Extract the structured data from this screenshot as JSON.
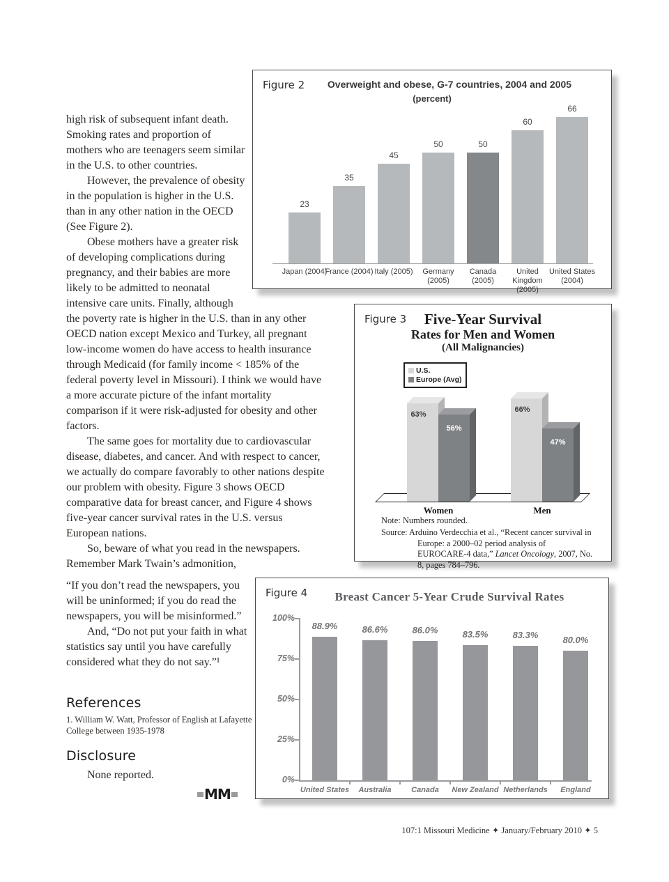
{
  "page": {
    "footer": "107:1 Missouri Medicine ✦ January/February 2010 ✦ 5"
  },
  "article": {
    "paragraphs": [
      {
        "text": "high risk of subsequent infant death. Smoking rates and proportion of mothers who are teenagers seem similar in the U.S. to other countries.",
        "indent": false
      },
      {
        "text": "However, the prevalence of obesity in the population is higher in the U.S. than in any other nation in the OECD (See Figure 2).",
        "indent": true
      },
      {
        "text": "Obese mothers have a greater risk of developing complications during pregnancy, and their babies are more likely to be admitted to neonatal intensive care units.  Finally, although",
        "indent": true
      },
      {
        "text": "the poverty rate is higher in the U.S. than in any other OECD nation except Mexico and Turkey, all pregnant low-income women do have access to health insurance through Medicaid (for family income < 185% of the federal poverty level in Missouri).  I think we would have a more accurate picture of the infant mortality comparison if it were risk-adjusted for obesity and other factors.",
        "indent": false
      },
      {
        "text": "The same goes for mortality due to cardiovascular disease, diabetes, and cancer.  And with respect to cancer, we actually do compare favorably to other nations despite our problem with obesity.  Figure 3 shows OECD comparative data for breast cancer, and Figure 4 shows five-year cancer survival rates in the U.S. versus European nations.",
        "indent": true
      },
      {
        "text": "So, beware of what you read in the newspapers. Remember Mark Twain’s admonition,",
        "indent": true
      },
      {
        "text": "“If you don’t read the newspapers, you will be uninformed; if you do read the newspapers, you will be misinformed.”",
        "indent": false
      },
      {
        "text": "And, “Do not put your faith in what statistics say until you have carefully considered what they do not say.”¹",
        "indent": true
      }
    ],
    "references": {
      "heading": "References",
      "item_1": "1. William W. Watt, Professor of English at Lafayette College between 1935-1978"
    },
    "disclosure": {
      "heading": "Disclosure",
      "text": "None reported."
    },
    "logo_text": "MM"
  },
  "chart_data": [
    {
      "figure_label": "Figure 2",
      "type": "bar",
      "title": "Overweight and obese, G-7 countries, 2004 and 2005",
      "subtitle": "(percent)",
      "categories": [
        "Japan (2004)",
        "France (2004)",
        "Italy (2005)",
        "Germany\n(2005)",
        "Canada\n(2005)",
        "United\nKingdom\n(2005)",
        "United States\n(2004)"
      ],
      "values": [
        23,
        35,
        45,
        50,
        50,
        60,
        66
      ],
      "highlight_index": 4,
      "bar_color": "#b5b9bc",
      "highlight_color": "#85888b",
      "ylim": [
        0,
        70
      ],
      "grid": false,
      "legend": "none",
      "value_labels": true
    },
    {
      "figure_label": "Figure 3",
      "type": "bar-3d-grouped",
      "title_lines": [
        "Five-Year Survival",
        "Rates for Men and Women",
        "(All Malignancies)"
      ],
      "categories": [
        "Women",
        "Men"
      ],
      "series": [
        {
          "name": "U.S.",
          "values": [
            63,
            66
          ],
          "color": "#d7d7d7"
        },
        {
          "name": "Europe (Avg)",
          "values": [
            56,
            47
          ],
          "color": "#7f8285"
        }
      ],
      "value_suffix": "%",
      "ylim": [
        0,
        100
      ],
      "legend_position": "top-left",
      "note": "Note:  Numbers rounded.",
      "source_prefix": "Source: Arduino Verdecchia et al., “Recent cancer survival in Europe: a 2000–02 period analysis of EUROCARE-4 data,” ",
      "source_italic": "Lancet Oncology",
      "source_suffix": ", 2007, No. 8, pages 784–796."
    },
    {
      "figure_label": "Figure 4",
      "type": "bar",
      "title": "Breast Cancer 5-Year Crude Survival Rates",
      "categories": [
        "United States",
        "Australia",
        "Canada",
        "New Zealand",
        "Netherlands",
        "England"
      ],
      "values": [
        88.9,
        86.6,
        86.0,
        83.5,
        83.3,
        80.0
      ],
      "bar_color": "#96979a",
      "ylabel_ticks": [
        "100%",
        "75%",
        "50%",
        "25%",
        "0%"
      ],
      "ylim": [
        0,
        100
      ],
      "grid": false,
      "legend": "none",
      "value_labels": true
    }
  ]
}
